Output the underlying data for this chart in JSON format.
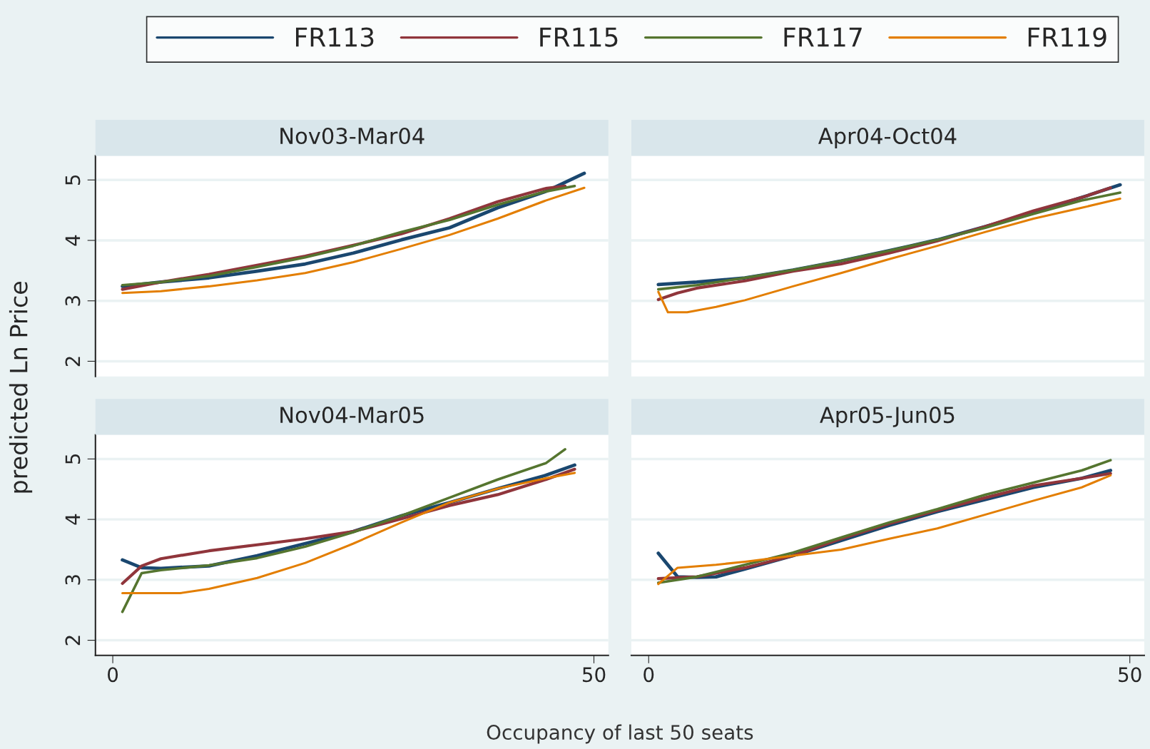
{
  "chart_data": [
    {
      "type": "line",
      "title": "Nov03-Mar04",
      "ylabel": "predicted Ln Price",
      "xlim": [
        -1.8,
        51.5
      ],
      "ylim": [
        1.75,
        5.4
      ],
      "xticks": [
        0,
        50
      ],
      "yticks": [
        2,
        3,
        4,
        5
      ],
      "grid": "y",
      "legend": "top",
      "tick_labels": "y",
      "series": [
        {
          "name": "FR113",
          "color": "#1a476f",
          "x": [
            1,
            5,
            10,
            15,
            20,
            25,
            30,
            35,
            40,
            45,
            49
          ],
          "values": [
            3.24,
            3.31,
            3.38,
            3.49,
            3.61,
            3.79,
            4.01,
            4.21,
            4.54,
            4.81,
            5.11
          ]
        },
        {
          "name": "FR115",
          "color": "#90353b",
          "x": [
            1,
            5,
            10,
            15,
            20,
            25,
            30,
            35,
            40,
            45,
            47
          ],
          "values": [
            3.19,
            3.31,
            3.44,
            3.59,
            3.74,
            3.92,
            4.11,
            4.36,
            4.64,
            4.86,
            4.9
          ]
        },
        {
          "name": "FR117",
          "color": "#55752f",
          "x": [
            1,
            5,
            10,
            15,
            20,
            25,
            30,
            35,
            40,
            45,
            48
          ],
          "values": [
            3.26,
            3.31,
            3.41,
            3.56,
            3.72,
            3.91,
            4.14,
            4.34,
            4.59,
            4.81,
            4.9
          ]
        },
        {
          "name": "FR119",
          "color": "#e37e00",
          "x": [
            1,
            5,
            10,
            15,
            20,
            25,
            30,
            35,
            40,
            45,
            49
          ],
          "values": [
            3.13,
            3.16,
            3.24,
            3.34,
            3.46,
            3.64,
            3.86,
            4.09,
            4.36,
            4.66,
            4.87
          ]
        }
      ]
    },
    {
      "type": "line",
      "title": "Apr04-Oct04",
      "xlim": [
        -1.8,
        51.5
      ],
      "ylim": [
        1.75,
        5.4
      ],
      "xticks": [
        0,
        50
      ],
      "yticks": [
        2,
        3,
        4,
        5
      ],
      "grid": "y",
      "tick_labels": false,
      "series": [
        {
          "color": "#1a476f",
          "x": [
            1,
            5,
            10,
            15,
            20,
            25,
            30,
            35,
            40,
            45,
            49
          ],
          "values": [
            3.27,
            3.31,
            3.38,
            3.51,
            3.66,
            3.83,
            4.01,
            4.23,
            4.46,
            4.71,
            4.92
          ]
        },
        {
          "color": "#90353b",
          "x": [
            1,
            3,
            5,
            10,
            15,
            20,
            25,
            30,
            35,
            40,
            45,
            48
          ],
          "values": [
            3.02,
            3.13,
            3.21,
            3.33,
            3.49,
            3.61,
            3.79,
            3.99,
            4.23,
            4.49,
            4.71,
            4.87
          ]
        },
        {
          "color": "#55752f",
          "x": [
            1,
            5,
            10,
            15,
            20,
            25,
            30,
            35,
            40,
            45,
            49
          ],
          "values": [
            3.19,
            3.26,
            3.38,
            3.51,
            3.66,
            3.83,
            4.01,
            4.21,
            4.44,
            4.66,
            4.79
          ]
        },
        {
          "color": "#e37e00",
          "x": [
            1,
            2,
            4,
            7,
            10,
            15,
            20,
            25,
            30,
            35,
            40,
            45,
            49
          ],
          "values": [
            3.15,
            2.81,
            2.81,
            2.9,
            3.01,
            3.24,
            3.46,
            3.69,
            3.91,
            4.14,
            4.36,
            4.54,
            4.69
          ]
        }
      ]
    },
    {
      "type": "line",
      "title": "Nov04-Mar05",
      "xlabel": "Occupancy of last 50 seats",
      "xlim": [
        -1.8,
        51.5
      ],
      "ylim": [
        1.75,
        5.4
      ],
      "xticks": [
        0,
        50
      ],
      "yticks": [
        2,
        3,
        4,
        5
      ],
      "grid": "y",
      "series": [
        {
          "color": "#1a476f",
          "x": [
            1,
            3,
            5,
            10,
            15,
            20,
            25,
            30,
            35,
            40,
            45,
            48
          ],
          "values": [
            3.33,
            3.2,
            3.19,
            3.23,
            3.4,
            3.6,
            3.8,
            4.06,
            4.28,
            4.51,
            4.73,
            4.9
          ]
        },
        {
          "color": "#90353b",
          "x": [
            1,
            3,
            5,
            10,
            15,
            20,
            25,
            30,
            35,
            40,
            45,
            48
          ],
          "values": [
            2.94,
            3.23,
            3.35,
            3.48,
            3.58,
            3.68,
            3.8,
            4.01,
            4.23,
            4.41,
            4.66,
            4.83
          ]
        },
        {
          "color": "#55752f",
          "x": [
            1,
            3,
            5,
            10,
            15,
            20,
            25,
            30,
            35,
            40,
            45,
            47
          ],
          "values": [
            2.47,
            3.11,
            3.16,
            3.24,
            3.36,
            3.55,
            3.79,
            4.06,
            4.36,
            4.66,
            4.93,
            5.16
          ]
        },
        {
          "color": "#e37e00",
          "x": [
            1,
            7,
            10,
            15,
            20,
            25,
            30,
            35,
            40,
            45,
            48
          ],
          "values": [
            2.78,
            2.78,
            2.85,
            3.03,
            3.28,
            3.6,
            3.95,
            4.28,
            4.51,
            4.68,
            4.77
          ]
        }
      ]
    },
    {
      "type": "line",
      "title": "Apr05-Jun05",
      "xlim": [
        -1.8,
        51.5
      ],
      "ylim": [
        1.75,
        5.4
      ],
      "xticks": [
        0,
        50
      ],
      "yticks": [
        2,
        3,
        4,
        5
      ],
      "grid": "y",
      "tick_labels": "x",
      "series": [
        {
          "color": "#1a476f",
          "x": [
            1,
            3,
            5,
            7,
            10,
            15,
            20,
            25,
            30,
            35,
            40,
            45,
            48
          ],
          "values": [
            3.44,
            3.05,
            3.04,
            3.05,
            3.18,
            3.4,
            3.65,
            3.9,
            4.13,
            4.33,
            4.53,
            4.68,
            4.81
          ]
        },
        {
          "color": "#90353b",
          "x": [
            1,
            5,
            10,
            15,
            20,
            25,
            30,
            35,
            40,
            45,
            48
          ],
          "values": [
            3.02,
            3.05,
            3.2,
            3.4,
            3.68,
            3.93,
            4.15,
            4.36,
            4.56,
            4.68,
            4.76
          ]
        },
        {
          "color": "#55752f",
          "x": [
            1,
            5,
            10,
            15,
            20,
            25,
            30,
            35,
            40,
            45,
            48
          ],
          "values": [
            2.95,
            3.05,
            3.25,
            3.45,
            3.7,
            3.95,
            4.17,
            4.41,
            4.61,
            4.81,
            4.98
          ]
        },
        {
          "color": "#e37e00",
          "x": [
            1,
            3,
            7,
            10,
            15,
            20,
            25,
            30,
            35,
            40,
            45,
            48
          ],
          "values": [
            2.93,
            3.2,
            3.25,
            3.3,
            3.4,
            3.5,
            3.68,
            3.85,
            4.08,
            4.31,
            4.53,
            4.73
          ]
        }
      ]
    }
  ]
}
